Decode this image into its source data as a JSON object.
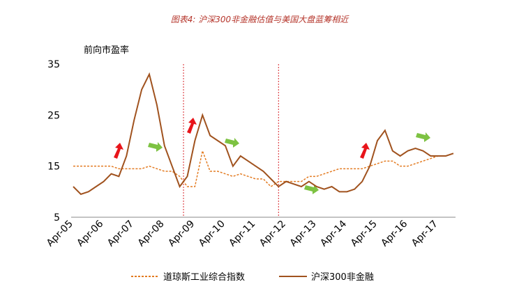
{
  "chart_data": {
    "type": "line",
    "title": "图表4: 沪深300非金融估值与美国大盘蓝筹相近",
    "y_label": "前向市盈率",
    "categories": [
      "Apr-05",
      null,
      null,
      null,
      "Apr-06",
      null,
      null,
      null,
      "Apr-07",
      null,
      null,
      null,
      "Apr-08",
      null,
      null,
      null,
      "Apr-09",
      null,
      null,
      null,
      "Apr-10",
      null,
      null,
      null,
      "Apr-11",
      null,
      null,
      null,
      "Apr-12",
      null,
      null,
      null,
      "Apr-13",
      null,
      null,
      null,
      "Apr-14",
      null,
      null,
      null,
      "Apr-15",
      null,
      null,
      null,
      "Apr-16",
      null,
      null,
      null,
      "Apr-17",
      null,
      null
    ],
    "series": [
      {
        "name": "道琼斯工业综合指数",
        "color": "#e37b22",
        "dashed": true,
        "values": [
          15,
          15,
          15,
          15,
          15,
          15,
          14.5,
          14.5,
          14.5,
          14.5,
          15,
          14.5,
          14,
          14,
          13,
          11,
          11,
          18,
          14,
          14,
          13.5,
          13,
          13.5,
          13,
          12.5,
          12.5,
          11,
          12,
          12,
          12,
          12,
          13,
          13,
          13.5,
          14,
          14.5,
          14.5,
          14.5,
          14.5,
          15,
          15.5,
          16,
          16,
          15,
          15,
          15.5,
          16,
          16.5,
          17,
          17,
          17.5
        ]
      },
      {
        "name": "沪深300非金融",
        "color": "#a0521e",
        "dashed": false,
        "values": [
          11,
          9.5,
          10,
          11,
          12,
          13.5,
          13,
          17,
          24,
          30,
          33,
          27,
          19,
          15,
          11,
          13,
          20,
          25,
          21,
          20,
          19,
          15,
          17,
          16,
          15,
          14,
          12.5,
          11,
          12,
          11.5,
          11,
          12,
          11,
          10.5,
          11,
          10,
          10,
          10.5,
          12,
          15,
          20,
          22,
          18,
          17,
          18,
          18.5,
          18,
          17,
          17,
          17,
          17.5
        ]
      }
    ],
    "ylim": [
      5,
      35
    ],
    "yticks": [
      5,
      15,
      25,
      35
    ],
    "grid": false
  }
}
